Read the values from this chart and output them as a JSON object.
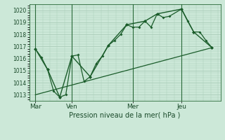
{
  "background_color": "#cce8d8",
  "grid_color": "#aaccb8",
  "line_color": "#1a5c2a",
  "xlabel": "Pression niveau de la mer( hPa )",
  "ylim": [
    1012.5,
    1020.5
  ],
  "yticks": [
    1013,
    1014,
    1015,
    1016,
    1017,
    1018,
    1019,
    1020
  ],
  "day_labels": [
    "Mar",
    "Ven",
    "Mer",
    "Jeu"
  ],
  "day_positions": [
    0,
    30,
    80,
    120
  ],
  "series1": [
    [
      0,
      1016.8
    ],
    [
      5,
      1016.1
    ],
    [
      10,
      1015.1
    ],
    [
      15,
      1013.3
    ],
    [
      20,
      1012.8
    ],
    [
      25,
      1013.0
    ],
    [
      30,
      1016.2
    ],
    [
      35,
      1016.3
    ],
    [
      40,
      1014.1
    ],
    [
      45,
      1014.5
    ],
    [
      50,
      1015.6
    ],
    [
      55,
      1016.2
    ],
    [
      60,
      1017.1
    ],
    [
      65,
      1017.5
    ],
    [
      70,
      1018.0
    ],
    [
      75,
      1018.8
    ],
    [
      80,
      1018.6
    ],
    [
      85,
      1018.6
    ],
    [
      90,
      1019.1
    ],
    [
      95,
      1018.6
    ],
    [
      100,
      1019.7
    ],
    [
      105,
      1019.4
    ],
    [
      110,
      1019.5
    ],
    [
      120,
      1020.1
    ],
    [
      125,
      1019.1
    ],
    [
      130,
      1018.2
    ],
    [
      135,
      1018.2
    ],
    [
      140,
      1017.5
    ],
    [
      145,
      1016.9
    ]
  ],
  "series2": [
    [
      0,
      1016.8
    ],
    [
      10,
      1015.1
    ],
    [
      20,
      1012.8
    ],
    [
      30,
      1016.2
    ],
    [
      45,
      1014.5
    ],
    [
      60,
      1017.1
    ],
    [
      75,
      1018.8
    ],
    [
      90,
      1019.1
    ],
    [
      100,
      1019.7
    ],
    [
      120,
      1020.1
    ],
    [
      130,
      1018.2
    ],
    [
      145,
      1016.9
    ]
  ],
  "series3": [
    [
      0,
      1013.0
    ],
    [
      145,
      1016.9
    ]
  ],
  "xlim": [
    -5,
    152
  ]
}
